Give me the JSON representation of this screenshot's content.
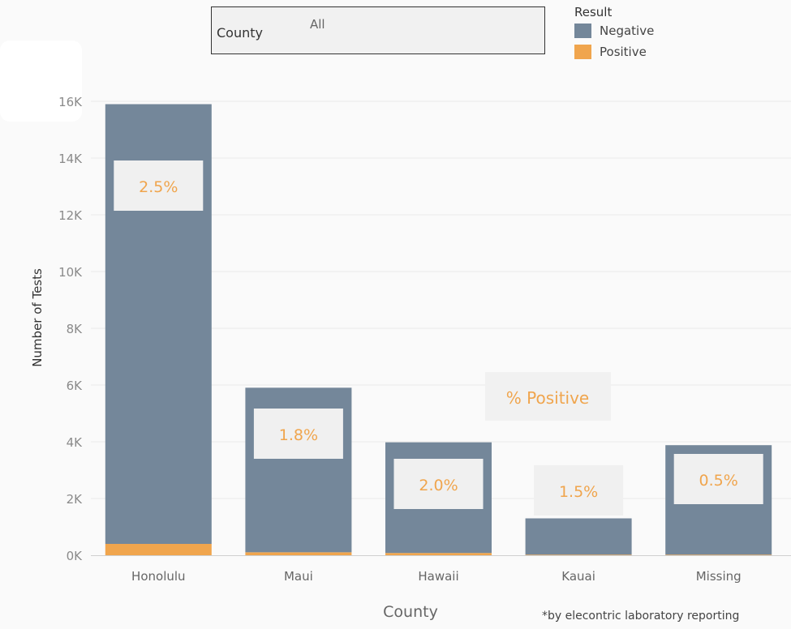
{
  "filter": {
    "label": "County",
    "value": "All"
  },
  "legend": {
    "title": "Result",
    "items": [
      {
        "label": "Negative",
        "color": "#74879a"
      },
      {
        "label": "Positive",
        "color": "#f0a54d"
      }
    ]
  },
  "footnote": "*by elecontric laboratory reporting",
  "chart_data": {
    "type": "bar",
    "stacked": true,
    "categories": [
      "Honolulu",
      "Maui",
      "Hawaii",
      "Kauai",
      "Missing"
    ],
    "series": [
      {
        "name": "Negative",
        "values": [
          15500,
          5800,
          3900,
          1280,
          3860
        ],
        "color": "#74879a"
      },
      {
        "name": "Positive",
        "values": [
          400,
          105,
          80,
          20,
          20
        ],
        "color": "#f0a54d"
      }
    ],
    "pct_labels": [
      "2.5%",
      "1.8%",
      "2.0%",
      "1.5%",
      "0.5%"
    ],
    "pct_annotation": "% Positive",
    "ylabel": "Number of Tests",
    "xlabel": "County",
    "yticks": [
      0,
      2000,
      4000,
      6000,
      8000,
      10000,
      12000,
      14000,
      16000
    ],
    "ytick_labels": [
      "0K",
      "2K",
      "4K",
      "6K",
      "8K",
      "10K",
      "12K",
      "14K",
      "16K"
    ],
    "ylim": [
      0,
      16000
    ],
    "grid": true
  }
}
